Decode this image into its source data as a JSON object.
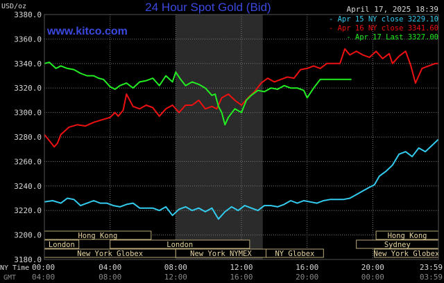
{
  "chart_data": {
    "type": "line",
    "title": "24 Hour Spot Gold (Bid)",
    "watermark": "www.kitco.com",
    "timestamp": "April 17, 2025 18:39",
    "ylabel": "USD/oz",
    "ylim": [
      3180,
      3380
    ],
    "yticks": [
      "3380.0",
      "3360.0",
      "3340.0",
      "3320.0",
      "3300.0",
      "3280.0",
      "3260.0",
      "3240.0",
      "3220.0",
      "3200.0",
      "3180.0"
    ],
    "xlim": [
      0,
      24
    ],
    "xtick_positions_hours": [
      0,
      4,
      8,
      12,
      16,
      20,
      24
    ],
    "xtick_labels_ny": [
      "00:00",
      "04:00",
      "08:00",
      "12:00",
      "16:00",
      "20:00",
      "23:59"
    ],
    "xtick_labels_gmt": [
      "04:00",
      "08:00",
      "12:00",
      "16:00",
      "20:00",
      "00:00",
      "03:59"
    ],
    "row_label_ny": "NY Time",
    "row_label_gmt": "GMT",
    "highlight_band_hours": [
      8,
      13.3
    ],
    "colors": {
      "background": "#000000",
      "grid": "#777777",
      "band": "#2b2b2b",
      "title": "#3b48e0",
      "axis_text": "#d8d8d8",
      "session_text": "#e6d4a0",
      "session_border": "#b8a878",
      "apr15": "#33ccee",
      "apr16": "#ee1111",
      "apr17": "#22ee22"
    },
    "legend": [
      {
        "label": "Apr 15 NY close 3229.10",
        "color": "#33ccee"
      },
      {
        "label": "Apr 16 NY close 3341.60",
        "color": "#ee1111"
      },
      {
        "label": "Apr 17 Last 3327.00",
        "color": "#22ee22"
      }
    ],
    "sessions": [
      {
        "label": "Hong Kong",
        "start": 0,
        "end": 6.5,
        "row": 0
      },
      {
        "label": "London",
        "start": 0,
        "end": 2.1,
        "row": 1
      },
      {
        "label": "London",
        "start": 4.0,
        "end": 12.5,
        "row": 1
      },
      {
        "label": "New York Globex",
        "start": 0,
        "end": 8.0,
        "row": 2
      },
      {
        "label": "New York NYMEX",
        "start": 8.0,
        "end": 13.5,
        "row": 2
      },
      {
        "label": "NY Globex",
        "start": 13.5,
        "end": 17.0,
        "row": 2
      },
      {
        "label": "Hong Kong",
        "start": 20.2,
        "end": 24,
        "row": 0
      },
      {
        "label": "Sydney",
        "start": 19.0,
        "end": 24,
        "row": 1
      },
      {
        "label": "New York Globex",
        "start": 20.1,
        "end": 24,
        "row": 2
      }
    ],
    "series": [
      {
        "name": "Apr 15 NY close 3229.10",
        "x": [
          0,
          0.5,
          1,
          1.4,
          1.8,
          2.2,
          2.6,
          3.0,
          3.4,
          3.8,
          4.2,
          4.6,
          5.0,
          5.4,
          5.8,
          6.2,
          6.6,
          7.0,
          7.4,
          7.8,
          8.2,
          8.6,
          9.0,
          9.4,
          9.8,
          10.2,
          10.6,
          11.0,
          11.4,
          11.8,
          12.2,
          12.6,
          13.0,
          13.4,
          13.8,
          14.2,
          14.6,
          15.0,
          15.4,
          15.8,
          16.2,
          16.6,
          17.0,
          17.4,
          17.8,
          18.2,
          18.6,
          19.0,
          19.4,
          19.8,
          20.1,
          20.4,
          20.8,
          21.2,
          21.6,
          22.0,
          22.4,
          22.8,
          23.2,
          23.6,
          23.99
        ],
        "values": [
          3227,
          3228,
          3226,
          3230,
          3229,
          3224,
          3226,
          3228,
          3226,
          3226,
          3224,
          3223,
          3225,
          3226,
          3222,
          3222,
          3222,
          3220,
          3223,
          3216,
          3221,
          3223,
          3220,
          3222,
          3219,
          3222,
          3213,
          3219,
          3223,
          3220,
          3224,
          3222,
          3220,
          3224,
          3224,
          3223,
          3225,
          3228,
          3226,
          3228,
          3227,
          3226,
          3228,
          3229,
          3229,
          3229,
          3230,
          3233,
          3236,
          3239,
          3241,
          3248,
          3252,
          3257,
          3266,
          3268,
          3264,
          3271,
          3268,
          3273,
          3278
        ]
      },
      {
        "name": "Apr 16 NY close 3341.60",
        "x": [
          0,
          0.3,
          0.6,
          0.8,
          1.0,
          1.5,
          2.0,
          2.5,
          3.0,
          3.5,
          4.0,
          4.3,
          4.5,
          4.8,
          5.0,
          5.4,
          5.8,
          6.2,
          6.6,
          7.0,
          7.4,
          7.8,
          8.2,
          8.6,
          9.0,
          9.4,
          9.8,
          10.2,
          10.5,
          10.8,
          11.2,
          11.6,
          12.0,
          12.4,
          12.8,
          13.2,
          13.6,
          14.0,
          14.4,
          14.8,
          15.2,
          15.6,
          16.0,
          16.4,
          16.8,
          17.2,
          17.6,
          18.0,
          18.3,
          18.6,
          19.0,
          19.4,
          19.8,
          20.2,
          20.6,
          21.0,
          21.2,
          21.6,
          22.0,
          22.3,
          22.6,
          23.0,
          23.4,
          23.8,
          23.99
        ],
        "values": [
          3282,
          3277,
          3272,
          3275,
          3282,
          3288,
          3290,
          3289,
          3292,
          3294,
          3296,
          3300,
          3297,
          3302,
          3315,
          3305,
          3303,
          3306,
          3304,
          3297,
          3303,
          3306,
          3300,
          3306,
          3306,
          3310,
          3303,
          3305,
          3303,
          3312,
          3315,
          3310,
          3306,
          3312,
          3317,
          3324,
          3328,
          3325,
          3327,
          3329,
          3328,
          3335,
          3336,
          3338,
          3336,
          3340,
          3340,
          3340,
          3352,
          3347,
          3350,
          3347,
          3345,
          3350,
          3344,
          3348,
          3340,
          3346,
          3350,
          3339,
          3324,
          3336,
          3338,
          3340,
          3340
        ]
      },
      {
        "name": "Apr 17 Last 3327.00",
        "x": [
          0,
          0.3,
          0.7,
          1.0,
          1.4,
          1.8,
          2.2,
          2.6,
          3.0,
          3.3,
          3.6,
          4.0,
          4.3,
          4.6,
          5.0,
          5.4,
          5.8,
          6.2,
          6.6,
          7.0,
          7.4,
          7.8,
          8.0,
          8.3,
          8.6,
          9.0,
          9.4,
          9.8,
          10.2,
          10.4,
          10.6,
          10.8,
          11.0,
          11.2,
          11.6,
          12.0,
          12.3,
          12.6,
          13.0,
          13.4,
          13.8,
          14.2,
          14.6,
          15.0,
          15.4,
          15.8,
          16.0,
          16.4,
          16.8,
          17.2,
          17.6,
          18.0,
          18.3,
          18.7
        ],
        "values": [
          3340,
          3341,
          3336,
          3338,
          3336,
          3335,
          3332,
          3330,
          3330,
          3328,
          3327,
          3321,
          3319,
          3322,
          3324,
          3320,
          3325,
          3326,
          3328,
          3322,
          3330,
          3325,
          3333,
          3327,
          3322,
          3325,
          3323,
          3320,
          3314,
          3315,
          3305,
          3300,
          3290,
          3296,
          3303,
          3300,
          3310,
          3314,
          3318,
          3317,
          3320,
          3319,
          3322,
          3320,
          3320,
          3318,
          3312,
          3320,
          3327,
          3327,
          3327,
          3327,
          3327,
          3327
        ]
      }
    ]
  }
}
